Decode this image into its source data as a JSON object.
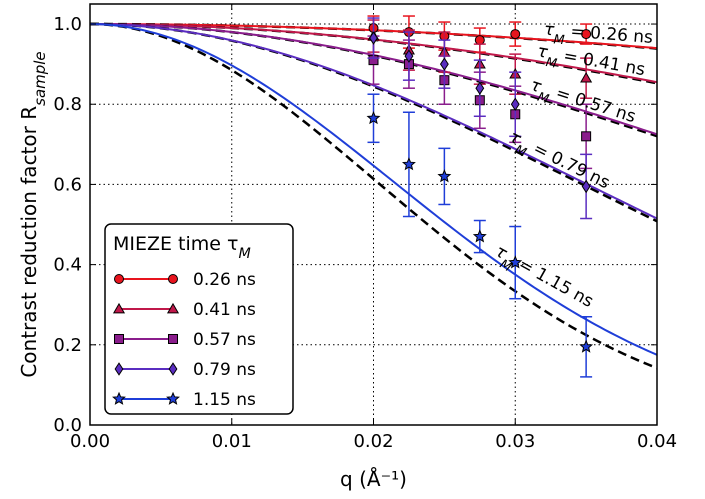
{
  "chart_data": {
    "type": "line",
    "xlabel": "q (Å⁻¹)",
    "ylabel": "Contrast reduction factor R_sample",
    "xlim": [
      0.0,
      0.04
    ],
    "ylim": [
      0.0,
      1.05
    ],
    "x_ticks": [
      "0.00",
      "0.01",
      "0.02",
      "0.03",
      "0.04"
    ],
    "y_ticks": [
      "0.0",
      "0.2",
      "0.4",
      "0.6",
      "0.8",
      "1.0"
    ],
    "grid": true,
    "legend_position": "bottom-left",
    "legend_title": "MIEZE time τ_M",
    "series": [
      {
        "name": "0.26 ns",
        "color": "#e8141e",
        "marker": "circle",
        "curve_label": "τ_M = 0.26 ns",
        "fit_y_at_x_max": 0.94,
        "points": [
          {
            "x": 0.02,
            "y": 0.99,
            "err": 0.03
          },
          {
            "x": 0.0225,
            "y": 0.98,
            "err": 0.04
          },
          {
            "x": 0.025,
            "y": 0.97,
            "err": 0.035
          },
          {
            "x": 0.0275,
            "y": 0.96,
            "err": 0.03
          },
          {
            "x": 0.03,
            "y": 0.975,
            "err": 0.03
          },
          {
            "x": 0.035,
            "y": 0.975,
            "err": 0.025
          }
        ]
      },
      {
        "name": "0.41 ns",
        "color": "#c0184a",
        "marker": "triangle",
        "curve_label": "τ_M = 0.41 ns",
        "fit_y_at_x_max": 0.855,
        "points": [
          {
            "x": 0.02,
            "y": 0.97,
            "err": 0.04
          },
          {
            "x": 0.0225,
            "y": 0.935,
            "err": 0.05
          },
          {
            "x": 0.025,
            "y": 0.93,
            "err": 0.05
          },
          {
            "x": 0.0275,
            "y": 0.9,
            "err": 0.05
          },
          {
            "x": 0.03,
            "y": 0.875,
            "err": 0.05
          },
          {
            "x": 0.035,
            "y": 0.865,
            "err": 0.05
          }
        ]
      },
      {
        "name": "0.57 ns",
        "color": "#8a1d8c",
        "marker": "square",
        "curve_label": "τ_M = 0.57 ns",
        "fit_y_at_x_max": 0.725,
        "points": [
          {
            "x": 0.02,
            "y": 0.91,
            "err": 0.06
          },
          {
            "x": 0.0225,
            "y": 0.9,
            "err": 0.06
          },
          {
            "x": 0.025,
            "y": 0.86,
            "err": 0.06
          },
          {
            "x": 0.0275,
            "y": 0.81,
            "err": 0.07
          },
          {
            "x": 0.03,
            "y": 0.775,
            "err": 0.07
          },
          {
            "x": 0.035,
            "y": 0.72,
            "err": 0.08
          }
        ]
      },
      {
        "name": "0.79 ns",
        "color": "#5a2dc0",
        "marker": "diamond",
        "curve_label": "τ_M = 0.79 ns",
        "fit_y_at_x_max": 0.515,
        "points": [
          {
            "x": 0.02,
            "y": 0.965,
            "err": 0.05
          },
          {
            "x": 0.0225,
            "y": 0.92,
            "err": 0.06
          },
          {
            "x": 0.025,
            "y": 0.9,
            "err": 0.06
          },
          {
            "x": 0.0275,
            "y": 0.84,
            "err": 0.07
          },
          {
            "x": 0.03,
            "y": 0.8,
            "err": 0.08
          },
          {
            "x": 0.035,
            "y": 0.595,
            "err": 0.08
          }
        ]
      },
      {
        "name": "1.15 ns",
        "color": "#1f3ed8",
        "marker": "star",
        "curve_label": "τ_M = 1.15 ns",
        "fit_y_at_x_max": 0.175,
        "points": [
          {
            "x": 0.02,
            "y": 0.765,
            "err": 0.06
          },
          {
            "x": 0.0225,
            "y": 0.65,
            "err": 0.13
          },
          {
            "x": 0.025,
            "y": 0.62,
            "err": 0.07
          },
          {
            "x": 0.0275,
            "y": 0.47,
            "err": 0.04
          },
          {
            "x": 0.03,
            "y": 0.405,
            "err": 0.09
          },
          {
            "x": 0.035,
            "y": 0.195,
            "err": 0.075
          }
        ]
      }
    ]
  }
}
